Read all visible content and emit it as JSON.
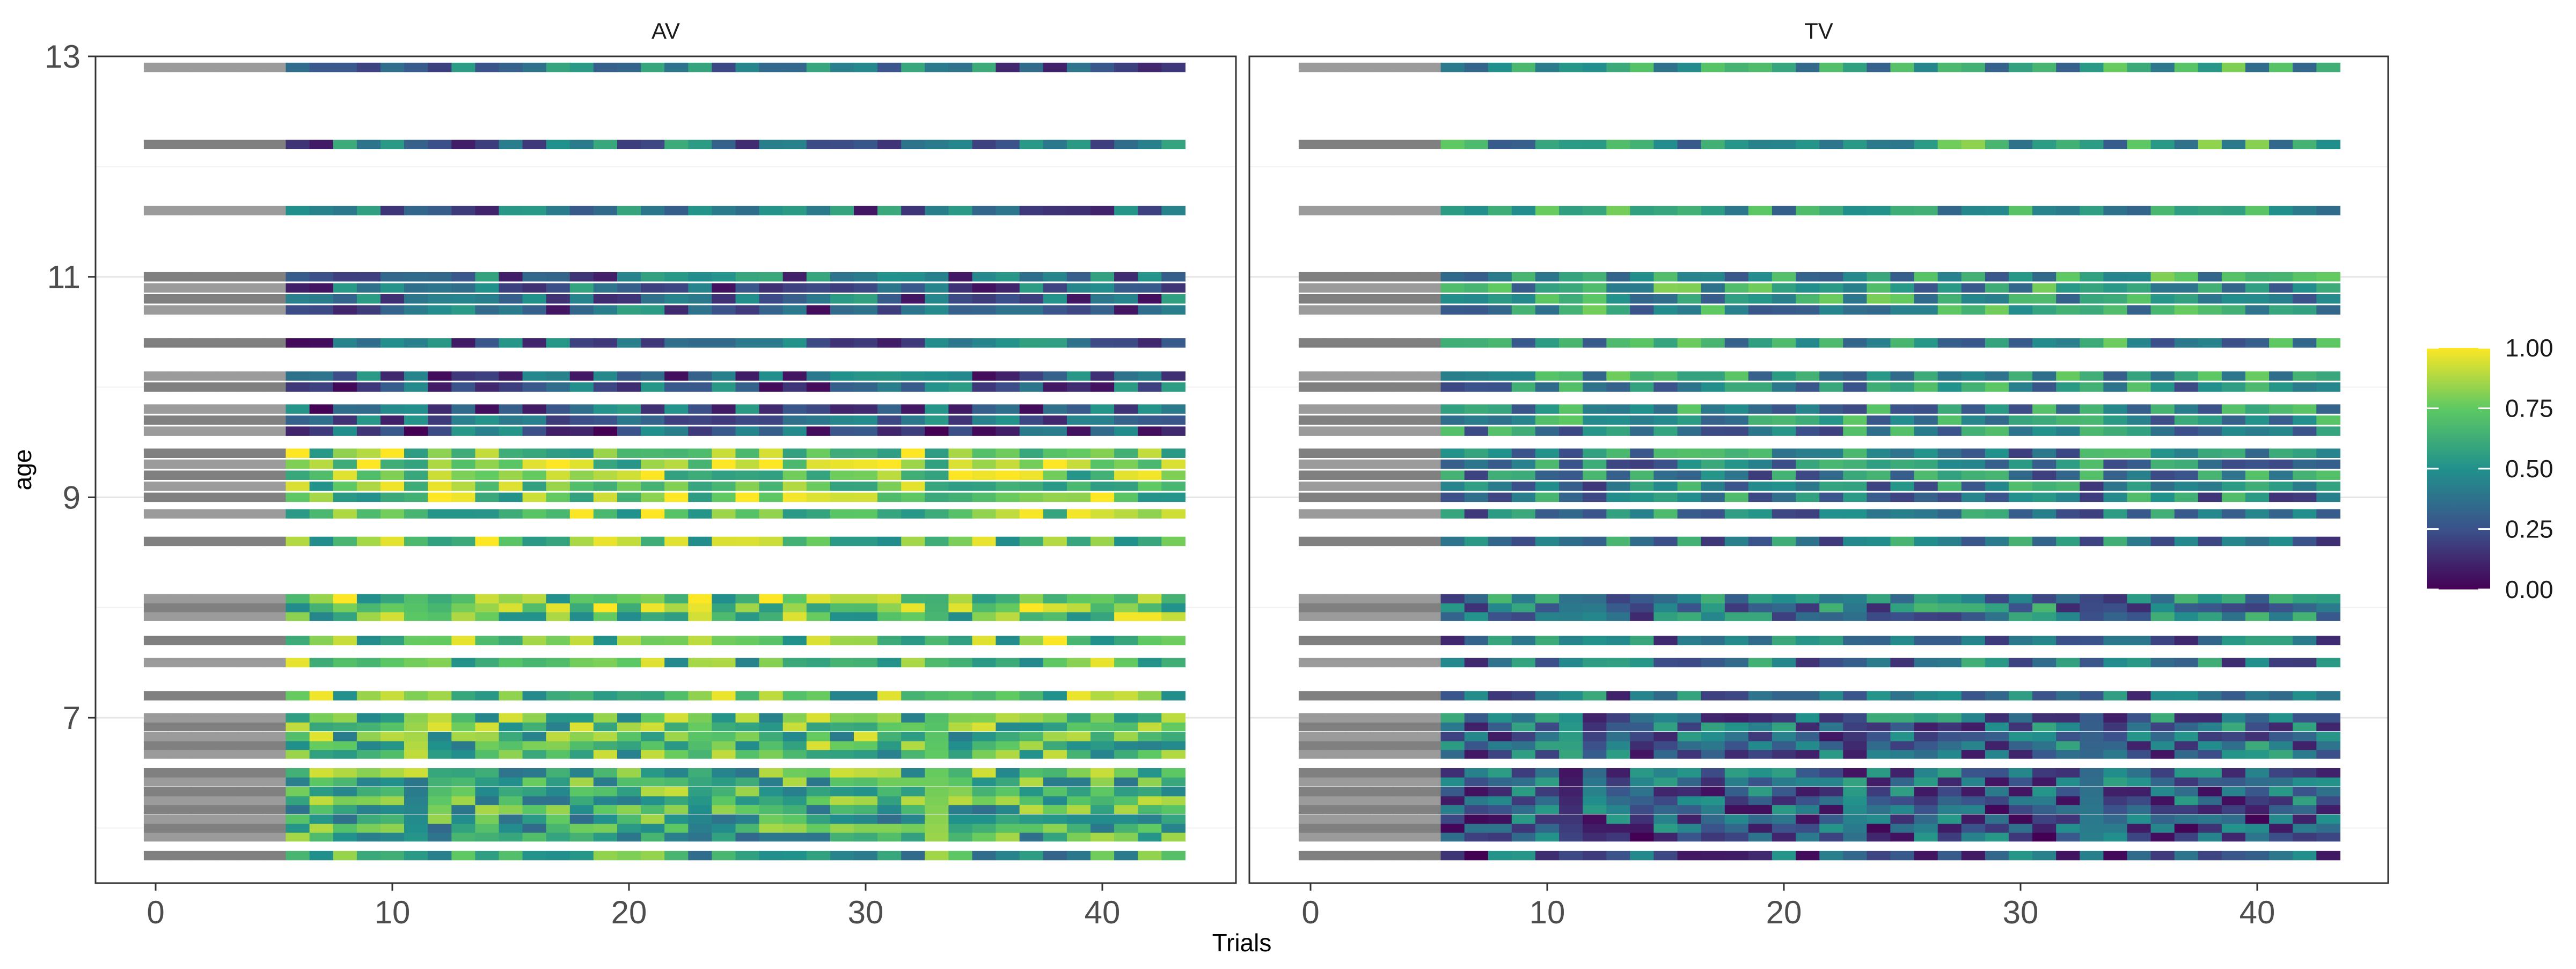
{
  "chart_data": {
    "type": "heatmap",
    "facets": [
      "AV",
      "TV"
    ],
    "xlabel": "Trials",
    "ylabel": "age",
    "xlim": [
      -1.5,
      44.5
    ],
    "ylim": [
      5.5,
      13
    ],
    "xticks": [
      0,
      10,
      20,
      30,
      40
    ],
    "yticks": [
      7,
      9,
      11,
      13
    ],
    "x_range": [
      -0.5,
      43.5
    ],
    "grey_region_end_trial": 5.5,
    "colorbar": {
      "min": 0,
      "max": 1,
      "ticks": [
        "0.00",
        "0.25",
        "0.50",
        "0.75",
        "1.00"
      ],
      "colors": [
        "#440154",
        "#3b528b",
        "#21918c",
        "#5ec962",
        "#fde725"
      ]
    },
    "participant_ages": [
      5.75,
      5.92,
      6.0,
      6.08,
      6.17,
      6.25,
      6.33,
      6.42,
      6.5,
      6.67,
      6.75,
      6.83,
      6.92,
      7.0,
      7.2,
      7.5,
      7.7,
      7.92,
      8.0,
      8.08,
      8.6,
      8.85,
      9.0,
      9.1,
      9.2,
      9.3,
      9.4,
      9.6,
      9.7,
      9.8,
      10.0,
      10.1,
      10.4,
      10.7,
      10.8,
      10.9,
      11.0,
      11.6,
      12.2,
      12.9
    ],
    "grid": true,
    "legend_position": "right"
  }
}
